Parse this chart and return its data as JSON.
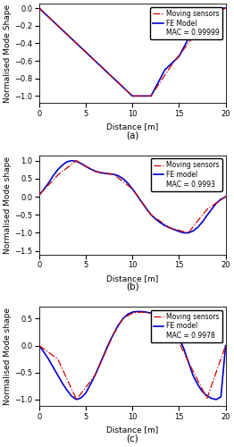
{
  "subplot_a": {
    "title": "(a)",
    "ylabel": "Normalised Mode Shape",
    "xlabel": "Distance [m]",
    "xlim": [
      0,
      20
    ],
    "ylim": [
      -1.08,
      0.05
    ],
    "yticks": [
      0,
      -0.2,
      -0.4,
      -0.6,
      -0.8,
      -1.0
    ],
    "fe_x": [
      0,
      0.5,
      1,
      1.5,
      2,
      2.5,
      3,
      3.5,
      4,
      4.5,
      5,
      5.5,
      6,
      6.5,
      7,
      7.5,
      8,
      8.25,
      8.5,
      8.75,
      9,
      9.25,
      9.5,
      9.75,
      10,
      10.25,
      10.5,
      10.75,
      11,
      11.25,
      11.5,
      11.75,
      12,
      12.5,
      13,
      13.5,
      14,
      14.5,
      15,
      15.5,
      16,
      16.5,
      17,
      17.5,
      18,
      18.5,
      19,
      19.5,
      20
    ],
    "fe_y": [
      0,
      -0.05,
      -0.1,
      -0.15,
      -0.2,
      -0.25,
      -0.3,
      -0.35,
      -0.4,
      -0.45,
      -0.5,
      -0.55,
      -0.6,
      -0.65,
      -0.7,
      -0.75,
      -0.8,
      -0.825,
      -0.85,
      -0.875,
      -0.9,
      -0.925,
      -0.95,
      -0.975,
      -1.0,
      -1.0,
      -1.0,
      -1.0,
      -1.0,
      -1.0,
      -1.0,
      -1.0,
      -1.0,
      -0.9,
      -0.8,
      -0.7,
      -0.65,
      -0.6,
      -0.55,
      -0.45,
      -0.35,
      -0.25,
      -0.15,
      -0.08,
      0,
      0,
      0,
      0,
      0
    ],
    "ms_x": [
      0,
      2,
      4,
      6,
      8,
      9,
      10,
      11,
      12,
      14,
      16,
      18,
      20
    ],
    "ms_y": [
      0,
      -0.2,
      -0.4,
      -0.6,
      -0.8,
      -0.9,
      -1.0,
      -1.0,
      -1.0,
      -0.68,
      -0.4,
      -0.1,
      0
    ],
    "mac": "MAC = 0.99999",
    "legend_fe": "FE Model",
    "legend_ms": "Moving sensors"
  },
  "subplot_b": {
    "title": "(b)",
    "ylabel": "Normalised Mode shape",
    "xlabel": "Distance [m]",
    "xlim": [
      0,
      20
    ],
    "ylim": [
      -1.6,
      1.15
    ],
    "yticks": [
      -1.5,
      -1.0,
      -0.5,
      0,
      0.5,
      1.0
    ],
    "fe_x": [
      0,
      0.5,
      1,
      1.5,
      2,
      2.5,
      3,
      3.5,
      4,
      4.5,
      5,
      5.5,
      6,
      6.5,
      7,
      7.5,
      8,
      8.5,
      9,
      9.5,
      10,
      10.5,
      11,
      11.5,
      12,
      12.5,
      13,
      13.5,
      14,
      14.5,
      15,
      15.5,
      16,
      16.5,
      17,
      17.5,
      18,
      18.5,
      19,
      19.5,
      20
    ],
    "fe_y": [
      0.05,
      0.2,
      0.38,
      0.58,
      0.75,
      0.88,
      0.97,
      1.0,
      0.98,
      0.92,
      0.84,
      0.77,
      0.71,
      0.67,
      0.65,
      0.63,
      0.62,
      0.58,
      0.5,
      0.38,
      0.22,
      0.04,
      -0.15,
      -0.33,
      -0.5,
      -0.62,
      -0.72,
      -0.8,
      -0.86,
      -0.91,
      -0.96,
      -1.0,
      -1.0,
      -0.95,
      -0.85,
      -0.7,
      -0.52,
      -0.35,
      -0.18,
      -0.07,
      0.0
    ],
    "ms_x": [
      0,
      2,
      4,
      6,
      8,
      10,
      12,
      14,
      16,
      18,
      20
    ],
    "ms_y": [
      0.05,
      0.6,
      1.0,
      0.7,
      0.62,
      0.22,
      -0.5,
      -0.86,
      -1.0,
      -0.35,
      0.0
    ],
    "mac": "MAC = 0.9993",
    "legend_fe": "FE model",
    "legend_ms": "Moving sensors"
  },
  "subplot_c": {
    "title": "(c)",
    "ylabel": "Normalised Mode shape",
    "xlabel": "Distance [m]",
    "xlim": [
      0,
      20
    ],
    "ylim": [
      -1.12,
      0.72
    ],
    "yticks": [
      -1.0,
      -0.5,
      0,
      0.5
    ],
    "fe_x": [
      0,
      0.5,
      1,
      1.5,
      2,
      2.5,
      3,
      3.5,
      4,
      4.5,
      5,
      5.5,
      6,
      6.5,
      7,
      7.5,
      8,
      8.5,
      9,
      9.5,
      10,
      10.5,
      11,
      11.5,
      12,
      12.5,
      13,
      13.5,
      14,
      14.5,
      15,
      15.5,
      16,
      16.5,
      17,
      17.5,
      18,
      18.5,
      19,
      19.5,
      20
    ],
    "fe_y": [
      0,
      -0.12,
      -0.25,
      -0.4,
      -0.55,
      -0.7,
      -0.83,
      -0.94,
      -1.0,
      -0.97,
      -0.88,
      -0.72,
      -0.55,
      -0.35,
      -0.15,
      0.05,
      0.22,
      0.38,
      0.5,
      0.58,
      0.62,
      0.63,
      0.63,
      0.62,
      0.6,
      0.58,
      0.55,
      0.5,
      0.42,
      0.3,
      0.15,
      -0.05,
      -0.3,
      -0.55,
      -0.72,
      -0.85,
      -0.93,
      -0.98,
      -1.0,
      -0.95,
      0.0
    ],
    "ms_x": [
      0,
      2,
      4,
      6,
      8,
      9,
      10,
      11,
      12,
      13,
      14,
      16,
      18,
      20
    ],
    "ms_y": [
      0,
      -0.25,
      -1.0,
      -0.55,
      0.22,
      0.5,
      0.6,
      0.62,
      0.6,
      0.55,
      0.42,
      -0.3,
      -0.98,
      0.0
    ],
    "mac": "MAC = 0.9978",
    "legend_fe": "FE model",
    "legend_ms": "Moving sensors"
  },
  "fe_color": "#0000cc",
  "ms_color": "#cc0000",
  "fe_linewidth": 1.2,
  "ms_linewidth": 0.9,
  "ms_linestyle": "-.",
  "legend_fontsize": 5.5,
  "label_fontsize": 6.5,
  "tick_fontsize": 6,
  "title_fontsize": 7.5
}
